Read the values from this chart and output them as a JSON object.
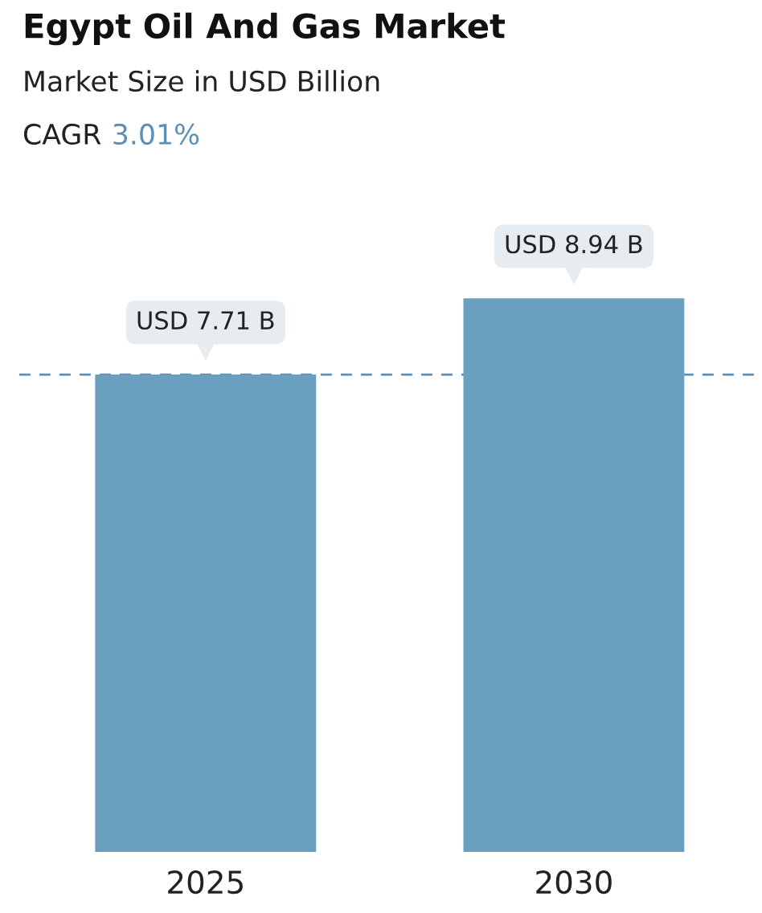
{
  "chart_data": {
    "type": "bar",
    "title": "Egypt Oil And Gas Market",
    "subtitle": "Market Size in USD Billion",
    "annotations": [
      "CAGR",
      "3.01%"
    ],
    "categories": [
      "2025",
      "2030"
    ],
    "values": [
      7.71,
      8.94
    ],
    "value_labels": [
      "USD 7.71 B",
      "USD 8.94 B"
    ],
    "color": "#6a9fbf",
    "tick_labels": "x",
    "grid": false,
    "legend": false,
    "ref_lines": [
      {
        "axis": "y",
        "value": 7.71,
        "color": "#5b8fb5",
        "line_style": "dashed"
      }
    ]
  }
}
